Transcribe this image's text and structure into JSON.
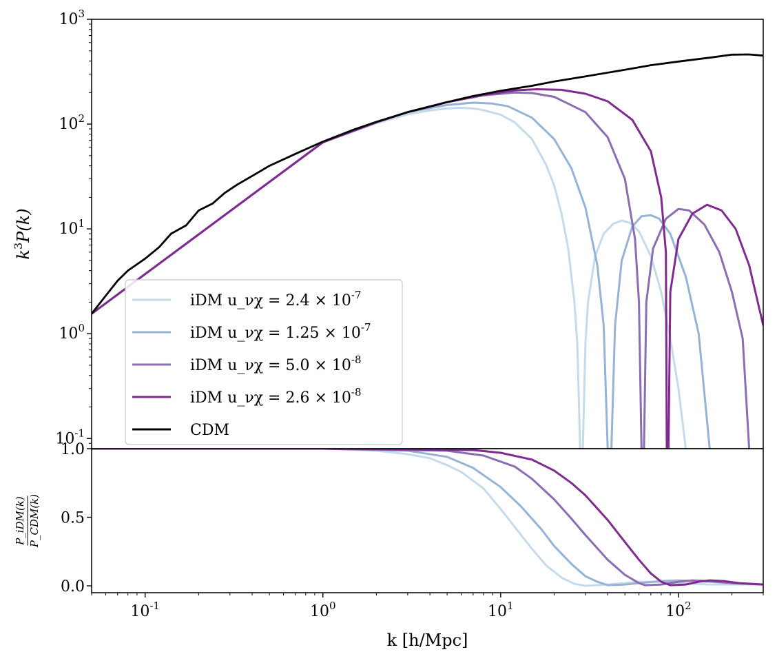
{
  "colors": {
    "cdm": "#000000",
    "idm1": "#c6dbe9",
    "idm2": "#96b3d6",
    "idm3": "#8a6db3",
    "idm4": "#7f2a8e"
  },
  "chart_data": [
    {
      "type": "line",
      "panel": "top",
      "xscale": "log",
      "yscale": "log",
      "xlim": [
        0.05,
        300
      ],
      "ylim": [
        0.08,
        1000
      ],
      "ylabel": "k^3P(k)",
      "xlabel": "",
      "ytick_labels": [
        "10^3",
        "10^2",
        "10^1",
        "10^0",
        "10^-1"
      ],
      "grid": false,
      "legend_position": "lower-left",
      "series": [
        {
          "name": "CDM",
          "points": [
            [
              0.05,
              1.55
            ],
            [
              0.06,
              2.3
            ],
            [
              0.07,
              3.2
            ],
            [
              0.08,
              4.0
            ],
            [
              0.1,
              5.2
            ],
            [
              0.12,
              6.7
            ],
            [
              0.14,
              9.0
            ],
            [
              0.17,
              10.8
            ],
            [
              0.2,
              15.0
            ],
            [
              0.24,
              17.5
            ],
            [
              0.28,
              22
            ],
            [
              0.33,
              26.5
            ],
            [
              0.4,
              32
            ],
            [
              0.5,
              40
            ],
            [
              0.7,
              52
            ],
            [
              1.0,
              68
            ],
            [
              1.5,
              89
            ],
            [
              2,
              105
            ],
            [
              3,
              130
            ],
            [
              5,
              162
            ],
            [
              7,
              185
            ],
            [
              10,
              208
            ],
            [
              15,
              232
            ],
            [
              20,
              255
            ],
            [
              30,
              285
            ],
            [
              50,
              330
            ],
            [
              70,
              365
            ],
            [
              100,
              395
            ],
            [
              150,
              430
            ],
            [
              200,
              460
            ],
            [
              250,
              462
            ],
            [
              300,
              450
            ]
          ]
        },
        {
          "name": "iDM u_νχ = 2.4 × 10^-7",
          "points": [
            [
              0.05,
              1.55
            ],
            [
              1,
              67
            ],
            [
              2,
              102
            ],
            [
              3,
              124
            ],
            [
              4,
              135
            ],
            [
              5,
              141
            ],
            [
              6,
              143
            ],
            [
              7,
              141
            ],
            [
              8,
              136
            ],
            [
              10,
              123
            ],
            [
              12,
              104
            ],
            [
              15,
              72
            ],
            [
              18,
              41
            ],
            [
              20,
              26
            ],
            [
              22,
              14
            ],
            [
              24,
              6.5
            ],
            [
              26,
              2.0
            ],
            [
              27,
              0.8
            ],
            [
              28,
              0.08
            ],
            [
              29,
              0.08
            ],
            [
              30,
              0.8
            ],
            [
              31,
              2.0
            ],
            [
              34,
              5.5
            ],
            [
              38,
              9
            ],
            [
              43,
              11.2
            ],
            [
              48,
              12.0
            ],
            [
              53,
              11.5
            ],
            [
              60,
              9.5
            ],
            [
              70,
              5.5
            ],
            [
              80,
              2.5
            ],
            [
              90,
              0.9
            ],
            [
              100,
              0.3
            ],
            [
              110,
              0.08
            ]
          ]
        },
        {
          "name": "iDM u_νχ = 1.25 × 10^-7",
          "points": [
            [
              0.05,
              1.55
            ],
            [
              1,
              67
            ],
            [
              2,
              104
            ],
            [
              3,
              130
            ],
            [
              5,
              152
            ],
            [
              7,
              160
            ],
            [
              9,
              157
            ],
            [
              11,
              148
            ],
            [
              15,
              115
            ],
            [
              20,
              72
            ],
            [
              25,
              38
            ],
            [
              30,
              16
            ],
            [
              35,
              4.5
            ],
            [
              38,
              1.2
            ],
            [
              40,
              0.08
            ],
            [
              42,
              0.08
            ],
            [
              44,
              1.2
            ],
            [
              48,
              5.0
            ],
            [
              55,
              10.5
            ],
            [
              62,
              13.2
            ],
            [
              70,
              13.5
            ],
            [
              78,
              12.5
            ],
            [
              90,
              9.0
            ],
            [
              110,
              3.5
            ],
            [
              130,
              1.0
            ],
            [
              150,
              0.08
            ]
          ]
        },
        {
          "name": "iDM u_νχ = 5.0 × 10^-8",
          "points": [
            [
              0.05,
              1.55
            ],
            [
              1,
              67
            ],
            [
              2,
              104
            ],
            [
              3,
              130
            ],
            [
              5,
              162
            ],
            [
              8,
              188
            ],
            [
              12,
              200
            ],
            [
              15,
              198
            ],
            [
              20,
              182
            ],
            [
              30,
              130
            ],
            [
              40,
              75
            ],
            [
              50,
              30
            ],
            [
              57,
              8
            ],
            [
              60,
              2
            ],
            [
              62,
              0.08
            ],
            [
              64,
              0.08
            ],
            [
              66,
              2
            ],
            [
              72,
              6.5
            ],
            [
              85,
              12.5
            ],
            [
              100,
              15.5
            ],
            [
              115,
              15.0
            ],
            [
              140,
              11
            ],
            [
              170,
              6
            ],
            [
              200,
              2.5
            ],
            [
              230,
              0.9
            ],
            [
              250,
              0.08
            ]
          ]
        },
        {
          "name": "iDM u_νχ = 2.6 × 10^-8",
          "points": [
            [
              0.05,
              1.55
            ],
            [
              1,
              67
            ],
            [
              2,
              104
            ],
            [
              3,
              130
            ],
            [
              5,
              162
            ],
            [
              8,
              190
            ],
            [
              12,
              210
            ],
            [
              16,
              215
            ],
            [
              22,
              212
            ],
            [
              30,
              195
            ],
            [
              40,
              165
            ],
            [
              55,
              110
            ],
            [
              70,
              55
            ],
            [
              80,
              20
            ],
            [
              85,
              6
            ],
            [
              86,
              0.08
            ],
            [
              88,
              0.08
            ],
            [
              90,
              2.5
            ],
            [
              100,
              8
            ],
            [
              120,
              14
            ],
            [
              145,
              17
            ],
            [
              175,
              15
            ],
            [
              210,
              10
            ],
            [
              250,
              4.5
            ],
            [
              300,
              1.2
            ]
          ]
        }
      ]
    },
    {
      "type": "line",
      "panel": "bottom",
      "xscale": "log",
      "yscale": "linear",
      "xlim": [
        0.05,
        300
      ],
      "ylim": [
        -0.05,
        1.0
      ],
      "ylabel": "P_iDM(k) / P_CDM(k)",
      "xlabel": "k [h/Mpc]",
      "xtick_labels": [
        "10^-1",
        "10^0",
        "10^1",
        "10^2"
      ],
      "ytick_labels": [
        "0.0",
        "0.5",
        "1.0"
      ],
      "grid": false,
      "series": [
        {
          "name": "iDM u_νχ = 2.4 × 10^-7",
          "points": [
            [
              0.05,
              1.0
            ],
            [
              1,
              1.0
            ],
            [
              2,
              0.985
            ],
            [
              3,
              0.96
            ],
            [
              4,
              0.93
            ],
            [
              5,
              0.88
            ],
            [
              6,
              0.83
            ],
            [
              8,
              0.71
            ],
            [
              10,
              0.56
            ],
            [
              12,
              0.43
            ],
            [
              15,
              0.27
            ],
            [
              18,
              0.15
            ],
            [
              22,
              0.06
            ],
            [
              26,
              0.015
            ],
            [
              30,
              0.0
            ],
            [
              40,
              0.01
            ],
            [
              50,
              0.02
            ],
            [
              60,
              0.03
            ],
            [
              80,
              0.03
            ],
            [
              100,
              0.02
            ],
            [
              150,
              0.01
            ],
            [
              300,
              0.01
            ]
          ]
        },
        {
          "name": "iDM u_νχ = 1.25 × 10^-7",
          "points": [
            [
              0.05,
              1.0
            ],
            [
              1,
              1.0
            ],
            [
              3,
              0.985
            ],
            [
              5,
              0.94
            ],
            [
              7,
              0.86
            ],
            [
              10,
              0.72
            ],
            [
              13,
              0.58
            ],
            [
              17,
              0.41
            ],
            [
              20,
              0.29
            ],
            [
              25,
              0.16
            ],
            [
              30,
              0.07
            ],
            [
              35,
              0.03
            ],
            [
              40,
              0.005
            ],
            [
              50,
              0.01
            ],
            [
              60,
              0.02
            ],
            [
              80,
              0.035
            ],
            [
              100,
              0.04
            ],
            [
              150,
              0.03
            ],
            [
              200,
              0.02
            ],
            [
              300,
              0.01
            ]
          ]
        },
        {
          "name": "iDM u_νχ = 5.0 × 10^-8",
          "points": [
            [
              0.05,
              1.0
            ],
            [
              1,
              1.0
            ],
            [
              5,
              0.985
            ],
            [
              8,
              0.95
            ],
            [
              12,
              0.87
            ],
            [
              15,
              0.78
            ],
            [
              20,
              0.63
            ],
            [
              25,
              0.49
            ],
            [
              30,
              0.37
            ],
            [
              40,
              0.19
            ],
            [
              50,
              0.08
            ],
            [
              60,
              0.02
            ],
            [
              65,
              0.005
            ],
            [
              80,
              0.01
            ],
            [
              100,
              0.03
            ],
            [
              120,
              0.04
            ],
            [
              150,
              0.035
            ],
            [
              200,
              0.02
            ],
            [
              300,
              0.01
            ]
          ]
        },
        {
          "name": "iDM u_νχ = 2.6 × 10^-8",
          "points": [
            [
              0.05,
              1.0
            ],
            [
              1,
              1.0
            ],
            [
              7,
              0.99
            ],
            [
              10,
              0.97
            ],
            [
              15,
              0.92
            ],
            [
              20,
              0.84
            ],
            [
              25,
              0.75
            ],
            [
              30,
              0.66
            ],
            [
              40,
              0.48
            ],
            [
              50,
              0.32
            ],
            [
              60,
              0.19
            ],
            [
              70,
              0.09
            ],
            [
              80,
              0.03
            ],
            [
              90,
              0.005
            ],
            [
              110,
              0.01
            ],
            [
              130,
              0.03
            ],
            [
              150,
              0.04
            ],
            [
              180,
              0.035
            ],
            [
              220,
              0.02
            ],
            [
              300,
              0.01
            ]
          ]
        }
      ]
    }
  ],
  "legend": [
    {
      "label": "iDM u_νχ = 2.4 × 10^-7",
      "color_key": "idm1"
    },
    {
      "label": "iDM u_νχ = 1.25 × 10^-7",
      "color_key": "idm2"
    },
    {
      "label": "iDM u_νχ = 5.0 × 10^-8",
      "color_key": "idm3"
    },
    {
      "label": "iDM u_νχ = 2.6 × 10^-8",
      "color_key": "idm4"
    },
    {
      "label": "CDM",
      "color_key": "cdm"
    }
  ]
}
